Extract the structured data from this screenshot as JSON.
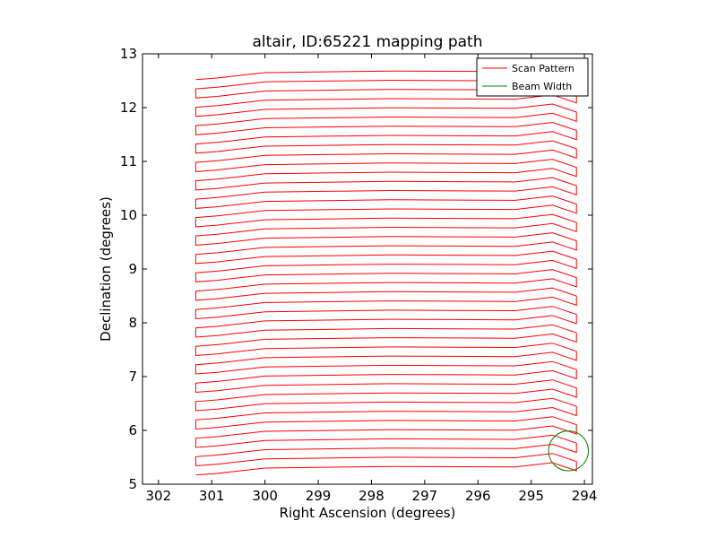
{
  "chart_data": {
    "type": "line",
    "title": "altair, ID:65221 mapping path",
    "xlabel": "Right Ascension (degrees)",
    "ylabel": "Declination (degrees)",
    "xlim": [
      302.3,
      293.85
    ],
    "ylim": [
      5,
      13
    ],
    "x_inverted": true,
    "xticks": [
      302,
      301,
      300,
      299,
      298,
      297,
      296,
      295,
      294
    ],
    "yticks": [
      5,
      6,
      7,
      8,
      9,
      10,
      11,
      12,
      13
    ],
    "grid": false,
    "legend_position": "top-right",
    "series": [
      {
        "name": "Scan Pattern",
        "color": "#ff0000",
        "scan": {
          "dec_start": 5.2,
          "dec_end": 12.55,
          "rows": 44,
          "ra_east": 301.3,
          "ra_west": 294.15,
          "ra_flat_start": 300.0,
          "ra_flat_end": 295.3,
          "ra_bulge": 294.6,
          "bulge_amplitude": 0.08
        }
      },
      {
        "name": "Beam Width",
        "color": "#008000",
        "circle": {
          "ra": 294.3,
          "dec": 5.62,
          "radius": 0.37
        }
      }
    ]
  }
}
